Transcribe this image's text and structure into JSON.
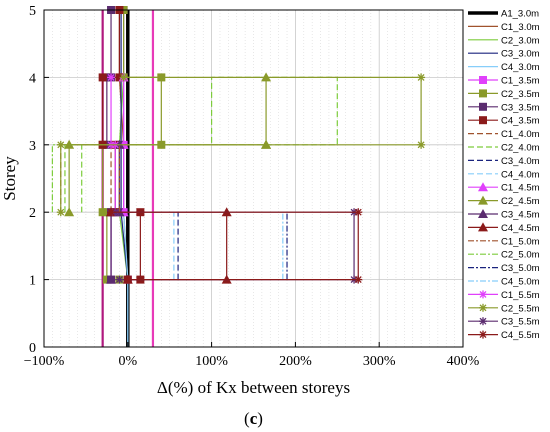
{
  "chart_data": {
    "type": "line",
    "xlabel": "Δ(%) of Kx between storeys",
    "ylabel": "Storey",
    "xlim": [
      -100,
      400
    ],
    "ylim": [
      0,
      5
    ],
    "xticks": [
      -100,
      0,
      100,
      200,
      300,
      400
    ],
    "xtick_labels": [
      "−100%",
      "0%",
      "100%",
      "200%",
      "300%",
      "400%"
    ],
    "yticks": [
      0,
      1,
      2,
      3,
      4,
      5
    ],
    "ytick_labels": [
      "0",
      "1",
      "2",
      "3",
      "4",
      "5"
    ],
    "grid": true,
    "legend_position": "right",
    "caption_prefix": "(",
    "caption_letter": "c",
    "caption_suffix": ")",
    "vertical_lines": [
      {
        "x": -30,
        "color": "#b0187e"
      },
      {
        "x": 30,
        "color": "#e83ab8"
      }
    ],
    "series": [
      {
        "name": "A1_3.0m",
        "color": "#000000",
        "dash": "",
        "width": 3.5,
        "marker": "none",
        "points": [
          [
            0,
            0
          ],
          [
            0,
            1
          ],
          [
            0,
            2
          ],
          [
            0,
            3
          ],
          [
            0,
            4
          ],
          [
            0,
            5
          ]
        ]
      },
      {
        "name": "C1_3.0m",
        "color": "#a0522d",
        "dash": "",
        "width": 1.2,
        "marker": "none",
        "points": [
          [
            0,
            0
          ],
          [
            0,
            1
          ],
          [
            -5,
            2
          ],
          [
            -5,
            3
          ],
          [
            -10,
            4
          ],
          [
            -10,
            5
          ]
        ]
      },
      {
        "name": "C2_3.0m",
        "color": "#7dcc3c",
        "dash": "",
        "width": 1.2,
        "marker": "none",
        "points": [
          [
            0,
            0
          ],
          [
            0,
            1
          ],
          [
            -10,
            2
          ],
          [
            -10,
            3
          ],
          [
            -5,
            4
          ],
          [
            -5,
            5
          ]
        ]
      },
      {
        "name": "C3_3.0m",
        "color": "#1a237e",
        "dash": "",
        "width": 1.2,
        "marker": "none",
        "points": [
          [
            0,
            0
          ],
          [
            0,
            1
          ],
          [
            -8,
            2
          ],
          [
            -8,
            3
          ],
          [
            -8,
            4
          ],
          [
            -8,
            5
          ]
        ]
      },
      {
        "name": "C4_3.0m",
        "color": "#87cefa",
        "dash": "",
        "width": 1.2,
        "marker": "none",
        "points": [
          [
            0,
            0
          ],
          [
            0,
            1
          ],
          [
            -5,
            2
          ],
          [
            -5,
            3
          ],
          [
            -5,
            4
          ],
          [
            -5,
            5
          ]
        ]
      },
      {
        "name": "C1_3.5m",
        "color": "#e040fb",
        "dash": "",
        "width": 1.2,
        "marker": "square",
        "points": [
          [
            0,
            1
          ],
          [
            -20,
            1
          ],
          [
            -20,
            2
          ],
          [
            -5,
            2
          ],
          [
            -5,
            3
          ],
          [
            -5,
            4
          ],
          [
            -5,
            5
          ]
        ]
      },
      {
        "name": "C2_3.5m",
        "color": "#8a9a2a",
        "dash": "",
        "width": 1.2,
        "marker": "square",
        "points": [
          [
            -10,
            1
          ],
          [
            -25,
            1
          ],
          [
            -25,
            2
          ],
          [
            -30,
            2
          ],
          [
            -30,
            3
          ],
          [
            40,
            3
          ],
          [
            40,
            4
          ],
          [
            -5,
            4
          ],
          [
            -5,
            5
          ]
        ]
      },
      {
        "name": "C3_3.5m",
        "color": "#5b2c6f",
        "dash": "",
        "width": 1.2,
        "marker": "square",
        "points": [
          [
            -20,
            1
          ],
          [
            -20,
            2
          ],
          [
            -10,
            2
          ],
          [
            -10,
            3
          ],
          [
            -25,
            3
          ],
          [
            -25,
            4
          ],
          [
            -20,
            4
          ],
          [
            -20,
            5
          ]
        ]
      },
      {
        "name": "C4_3.5m",
        "color": "#8b1a1a",
        "dash": "",
        "width": 1.2,
        "marker": "square",
        "points": [
          [
            0,
            1
          ],
          [
            15,
            1
          ],
          [
            15,
            2
          ],
          [
            -15,
            2
          ],
          [
            -15,
            3
          ],
          [
            -30,
            3
          ],
          [
            -30,
            4
          ],
          [
            -10,
            4
          ],
          [
            -10,
            5
          ]
        ]
      },
      {
        "name": "C1_4.0m",
        "color": "#a0522d",
        "dash": "6,3",
        "width": 1.2,
        "marker": "none",
        "points": [
          [
            -20,
            2
          ],
          [
            -20,
            3
          ],
          [
            -80,
            3
          ],
          [
            -80,
            2
          ]
        ]
      },
      {
        "name": "C2_4.0m",
        "color": "#7dcc3c",
        "dash": "6,3",
        "width": 1.2,
        "marker": "none",
        "points": [
          [
            -75,
            2
          ],
          [
            -75,
            3
          ],
          [
            100,
            3
          ],
          [
            100,
            4
          ],
          [
            250,
            4
          ],
          [
            250,
            3
          ],
          [
            -55,
            3
          ],
          [
            -55,
            2
          ]
        ]
      },
      {
        "name": "C3_4.0m",
        "color": "#1a237e",
        "dash": "6,3",
        "width": 1.2,
        "marker": "none",
        "points": [
          [
            60,
            1
          ],
          [
            60,
            2
          ]
        ]
      },
      {
        "name": "C4_4.0m",
        "color": "#87cefa",
        "dash": "6,3",
        "width": 1.2,
        "marker": "none",
        "points": [
          [
            55,
            1
          ],
          [
            55,
            2
          ]
        ]
      },
      {
        "name": "C1_4.5m",
        "color": "#e040fb",
        "dash": "",
        "width": 1.2,
        "marker": "triangle",
        "points": [
          [
            -5,
            2
          ],
          [
            -5,
            3
          ],
          [
            -5,
            4
          ]
        ]
      },
      {
        "name": "C2_4.5m",
        "color": "#8a9a2a",
        "dash": "",
        "width": 1.2,
        "marker": "triangle",
        "points": [
          [
            -70,
            2
          ],
          [
            -70,
            3
          ],
          [
            165,
            3
          ],
          [
            165,
            4
          ],
          [
            165,
            3
          ]
        ]
      },
      {
        "name": "C3_4.5m",
        "color": "#5b2c6f",
        "dash": "",
        "width": 1.2,
        "marker": "triangle",
        "points": [
          [
            -20,
            1
          ],
          [
            -20,
            2
          ],
          [
            -10,
            2
          ],
          [
            -10,
            3
          ]
        ]
      },
      {
        "name": "C4_4.5m",
        "color": "#8b1a1a",
        "dash": "",
        "width": 1.2,
        "marker": "triangle",
        "points": [
          [
            0,
            1
          ],
          [
            118,
            1
          ],
          [
            118,
            2
          ],
          [
            -20,
            2
          ]
        ]
      },
      {
        "name": "C1_5.0m",
        "color": "#a0522d",
        "dash": "6,2,2,2",
        "width": 1.2,
        "marker": "none",
        "points": [
          [
            -10,
            2
          ],
          [
            -10,
            3
          ],
          [
            -15,
            3
          ]
        ]
      },
      {
        "name": "C2_5.0m",
        "color": "#7dcc3c",
        "dash": "6,2,2,2",
        "width": 1.2,
        "marker": "none",
        "points": [
          [
            -90,
            2
          ],
          [
            -90,
            3
          ],
          [
            -60,
            3
          ]
        ]
      },
      {
        "name": "C3_5.0m",
        "color": "#1a237e",
        "dash": "6,2,2,2",
        "width": 1.2,
        "marker": "none",
        "points": [
          [
            190,
            1
          ],
          [
            190,
            2
          ]
        ]
      },
      {
        "name": "C4_5.0m",
        "color": "#87cefa",
        "dash": "6,2,2,2",
        "width": 1.2,
        "marker": "none",
        "points": [
          [
            185,
            1
          ],
          [
            185,
            2
          ]
        ]
      },
      {
        "name": "C1_5.5m",
        "color": "#e040fb",
        "dash": "",
        "width": 1.2,
        "marker": "asterisk",
        "points": [
          [
            -15,
            2
          ],
          [
            -15,
            3
          ],
          [
            -20,
            3
          ],
          [
            -20,
            4
          ]
        ]
      },
      {
        "name": "C2_5.5m",
        "color": "#8a9a2a",
        "dash": "",
        "width": 1.2,
        "marker": "asterisk",
        "points": [
          [
            -80,
            2
          ],
          [
            -80,
            3
          ],
          [
            350,
            3
          ],
          [
            350,
            4
          ],
          [
            -5,
            4
          ]
        ]
      },
      {
        "name": "C3_5.5m",
        "color": "#5b2c6f",
        "dash": "",
        "width": 1.2,
        "marker": "asterisk",
        "points": [
          [
            -10,
            1
          ],
          [
            270,
            1
          ],
          [
            270,
            2
          ],
          [
            -15,
            2
          ]
        ]
      },
      {
        "name": "C4_5.5m",
        "color": "#8b1a1a",
        "dash": "",
        "width": 1.2,
        "marker": "asterisk",
        "points": [
          [
            0,
            1
          ],
          [
            275,
            1
          ],
          [
            275,
            2
          ],
          [
            -20,
            2
          ]
        ]
      }
    ]
  }
}
